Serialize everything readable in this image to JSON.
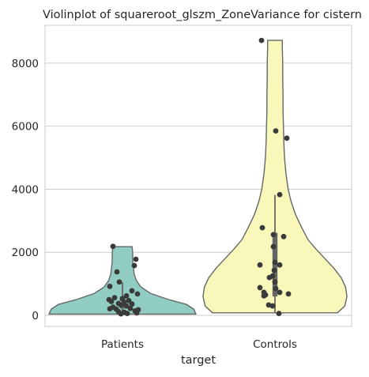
{
  "chart_data": {
    "type": "violin",
    "title": "Violinplot of squareroot_glszm_ZoneVariance for cistern",
    "xlabel": "target",
    "ylabel": "",
    "categories": [
      "Patients",
      "Controls"
    ],
    "ylim": [
      -350,
      9200
    ],
    "yticks": [
      0,
      2000,
      4000,
      6000,
      8000
    ],
    "grid": "horizontal",
    "colors": [
      "#91cdc2",
      "#f9f8bb"
    ],
    "outline_color": "#666666",
    "point_color": "#3a3a3a",
    "violins": [
      {
        "name": "Patients",
        "range": [
          40,
          2180
        ],
        "density": [
          [
            40,
            1.0
          ],
          [
            200,
            0.97
          ],
          [
            350,
            0.87
          ],
          [
            500,
            0.63
          ],
          [
            700,
            0.38
          ],
          [
            900,
            0.25
          ],
          [
            1100,
            0.19
          ],
          [
            1300,
            0.16
          ],
          [
            1500,
            0.15
          ],
          [
            1700,
            0.14
          ],
          [
            1900,
            0.14
          ],
          [
            2100,
            0.135
          ],
          [
            2180,
            0.13
          ]
        ],
        "box": {
          "q1": 220,
          "median": 430,
          "q3": 600,
          "whisker_low": 40,
          "whisker_high": 1050
        },
        "points": [
          [
            -0.12,
            2190
          ],
          [
            0.17,
            1780
          ],
          [
            0.15,
            1580
          ],
          [
            -0.07,
            1380
          ],
          [
            -0.04,
            1060
          ],
          [
            -0.16,
            920
          ],
          [
            0.12,
            780
          ],
          [
            0.19,
            680
          ],
          [
            0.05,
            620
          ],
          [
            -0.1,
            560
          ],
          [
            -0.17,
            500
          ],
          [
            0.0,
            530
          ],
          [
            0.08,
            470
          ],
          [
            -0.14,
            440
          ],
          [
            0.02,
            420
          ],
          [
            -0.05,
            380
          ],
          [
            0.12,
            360
          ],
          [
            -0.02,
            330
          ],
          [
            0.05,
            300
          ],
          [
            -0.12,
            260
          ],
          [
            0.1,
            220
          ],
          [
            -0.16,
            210
          ],
          [
            -0.08,
            200
          ],
          [
            0.2,
            180
          ],
          [
            0.16,
            140
          ],
          [
            -0.05,
            120
          ],
          [
            0.02,
            100
          ],
          [
            0.18,
            80
          ],
          [
            0.06,
            60
          ],
          [
            -0.02,
            50
          ]
        ]
      },
      {
        "name": "Controls",
        "range": [
          80,
          8720
        ],
        "density": [
          [
            80,
            0.85
          ],
          [
            300,
            0.95
          ],
          [
            600,
            0.98
          ],
          [
            900,
            0.96
          ],
          [
            1200,
            0.9
          ],
          [
            1500,
            0.8
          ],
          [
            1800,
            0.68
          ],
          [
            2100,
            0.56
          ],
          [
            2400,
            0.45
          ],
          [
            2800,
            0.36
          ],
          [
            3200,
            0.28
          ],
          [
            3600,
            0.22
          ],
          [
            4000,
            0.18
          ],
          [
            4500,
            0.15
          ],
          [
            5000,
            0.13
          ],
          [
            5500,
            0.12
          ],
          [
            6000,
            0.115
          ],
          [
            6500,
            0.11
          ],
          [
            7000,
            0.11
          ],
          [
            7500,
            0.105
          ],
          [
            8000,
            0.105
          ],
          [
            8500,
            0.1
          ],
          [
            8720,
            0.1
          ]
        ],
        "box": {
          "q1": 600,
          "median": 1050,
          "q3": 2620,
          "whisker_low": 80,
          "whisker_high": 3820
        },
        "points": [
          [
            -0.17,
            8720
          ],
          [
            0.01,
            5850
          ],
          [
            0.15,
            5620
          ],
          [
            0.06,
            3830
          ],
          [
            -0.16,
            2780
          ],
          [
            0.11,
            2500
          ],
          [
            -0.02,
            2560
          ],
          [
            -0.02,
            2180
          ],
          [
            0.0,
            1680
          ],
          [
            -0.19,
            1600
          ],
          [
            0.06,
            1600
          ],
          [
            -0.01,
            1430
          ],
          [
            -0.03,
            1250
          ],
          [
            -0.07,
            1200
          ],
          [
            0.0,
            1060
          ],
          [
            -0.19,
            880
          ],
          [
            0.01,
            850
          ],
          [
            0.06,
            730
          ],
          [
            -0.14,
            730
          ],
          [
            -0.12,
            650
          ],
          [
            0.17,
            680
          ],
          [
            -0.14,
            620
          ],
          [
            -0.08,
            330
          ],
          [
            -0.03,
            300
          ],
          [
            0.05,
            60
          ]
        ]
      }
    ]
  }
}
